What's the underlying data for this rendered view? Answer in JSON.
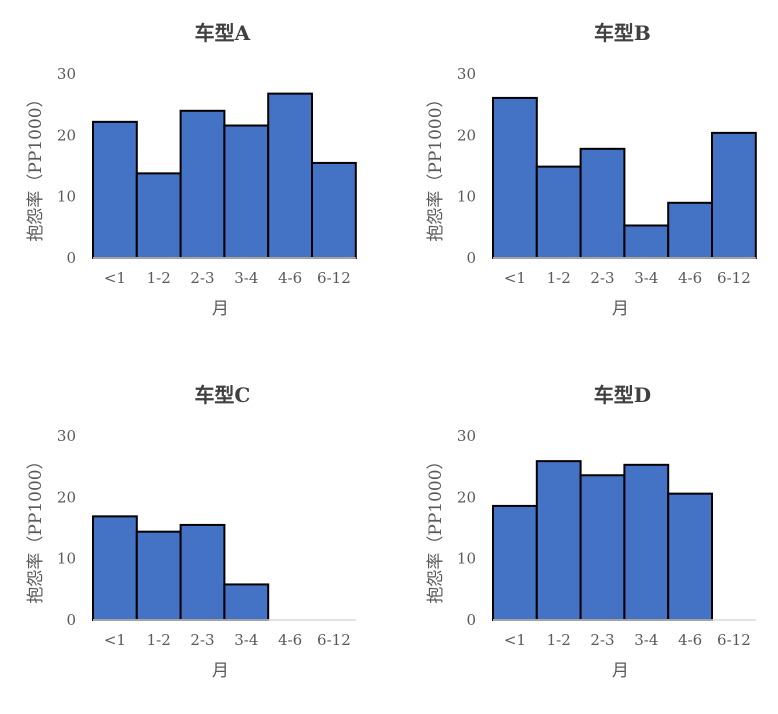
{
  "chart_data": [
    {
      "type": "bar",
      "title": "车型A",
      "xlabel": "月",
      "ylabel": "抱怨率（PP1000）",
      "categories": [
        "<1",
        "1-2",
        "2-3",
        "3-4",
        "4-6",
        "6-12"
      ],
      "values": [
        22.2,
        13.8,
        24.0,
        21.6,
        26.8,
        15.5
      ],
      "ylim": [
        0,
        30
      ],
      "yticks": [
        "30",
        "20",
        "10",
        "0"
      ],
      "grid": false,
      "bar_color": "#4472C4"
    },
    {
      "type": "bar",
      "title": "车型B",
      "xlabel": "月",
      "ylabel": "抱怨率（PP1000）",
      "categories": [
        "<1",
        "1-2",
        "2-3",
        "3-4",
        "4-6",
        "6-12"
      ],
      "values": [
        26.1,
        14.9,
        17.8,
        5.3,
        9.0,
        20.4
      ],
      "ylim": [
        0,
        30
      ],
      "yticks": [
        "30",
        "20",
        "10",
        "0"
      ],
      "grid": false,
      "bar_color": "#4472C4"
    },
    {
      "type": "bar",
      "title": "车型C",
      "xlabel": "月",
      "ylabel": "抱怨率（PP1000）",
      "categories": [
        "<1",
        "1-2",
        "2-3",
        "3-4",
        "4-6",
        "6-12"
      ],
      "values": [
        16.9,
        14.4,
        15.5,
        5.8,
        null,
        null
      ],
      "ylim": [
        0,
        30
      ],
      "yticks": [
        "30",
        "20",
        "10",
        "0"
      ],
      "grid": false,
      "bar_color": "#4472C4"
    },
    {
      "type": "bar",
      "title": "车型D",
      "xlabel": "月",
      "ylabel": "抱怨率（PP1000）",
      "categories": [
        "<1",
        "1-2",
        "2-3",
        "3-4",
        "4-6",
        "6-12"
      ],
      "values": [
        18.6,
        25.9,
        23.6,
        25.3,
        20.6,
        null
      ],
      "ylim": [
        0,
        30
      ],
      "yticks": [
        "30",
        "20",
        "10",
        "0"
      ],
      "grid": false,
      "bar_color": "#4472C4"
    }
  ]
}
